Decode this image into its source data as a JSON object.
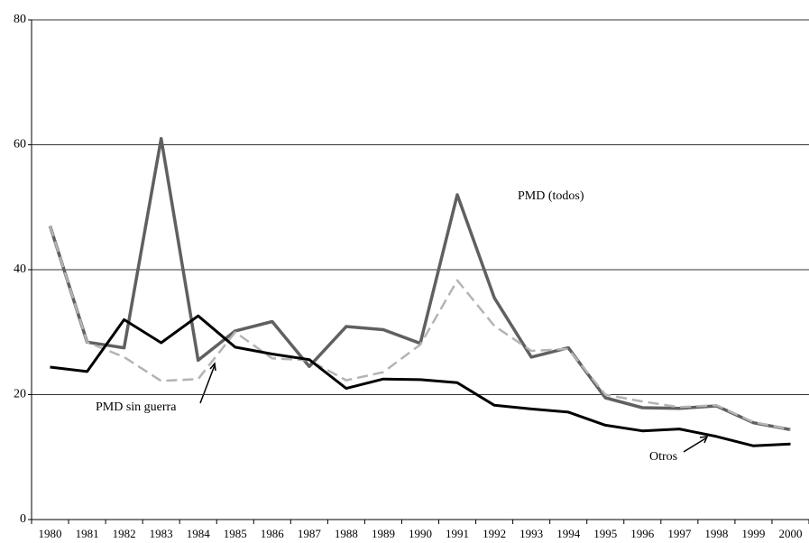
{
  "chart_data": {
    "type": "line",
    "categories": [
      "1980",
      "1981",
      "1982",
      "1983",
      "1984",
      "1985",
      "1986",
      "1987",
      "1988",
      "1989",
      "1990",
      "1991",
      "1992",
      "1993",
      "1994",
      "1995",
      "1996",
      "1997",
      "1998",
      "1999",
      "2000"
    ],
    "series": [
      {
        "name": "PMD (todos)",
        "color": "#606060",
        "dash": false,
        "width": 3.5,
        "values": [
          47,
          28.4,
          27.5,
          61,
          25.5,
          30.2,
          31.7,
          24.5,
          30.9,
          30.4,
          28.2,
          52,
          35.5,
          26,
          27.5,
          19.5,
          17.9,
          17.8,
          18.2,
          15.5,
          14.4
        ]
      },
      {
        "name": "PMD sin guerra",
        "color": "#b4b4b4",
        "dash": true,
        "width": 2.5,
        "values": [
          47,
          28.4,
          26,
          22.2,
          22.5,
          30,
          25.8,
          25.5,
          22.3,
          23.6,
          28,
          38.3,
          31,
          27,
          27.3,
          20,
          18.9,
          18,
          18.3,
          15.6,
          14.4
        ]
      },
      {
        "name": "Otros",
        "color": "#000000",
        "dash": false,
        "width": 3,
        "values": [
          24.4,
          23.7,
          32,
          28.3,
          32.6,
          27.6,
          26.5,
          25.6,
          21,
          22.5,
          22.4,
          21.9,
          18.3,
          17.7,
          17.2,
          15.1,
          14.2,
          14.5,
          13.3,
          11.8,
          12.1
        ]
      }
    ],
    "ylim": [
      0,
      80
    ],
    "yticks": [
      0,
      20,
      40,
      60,
      80
    ],
    "grid": true
  }
}
